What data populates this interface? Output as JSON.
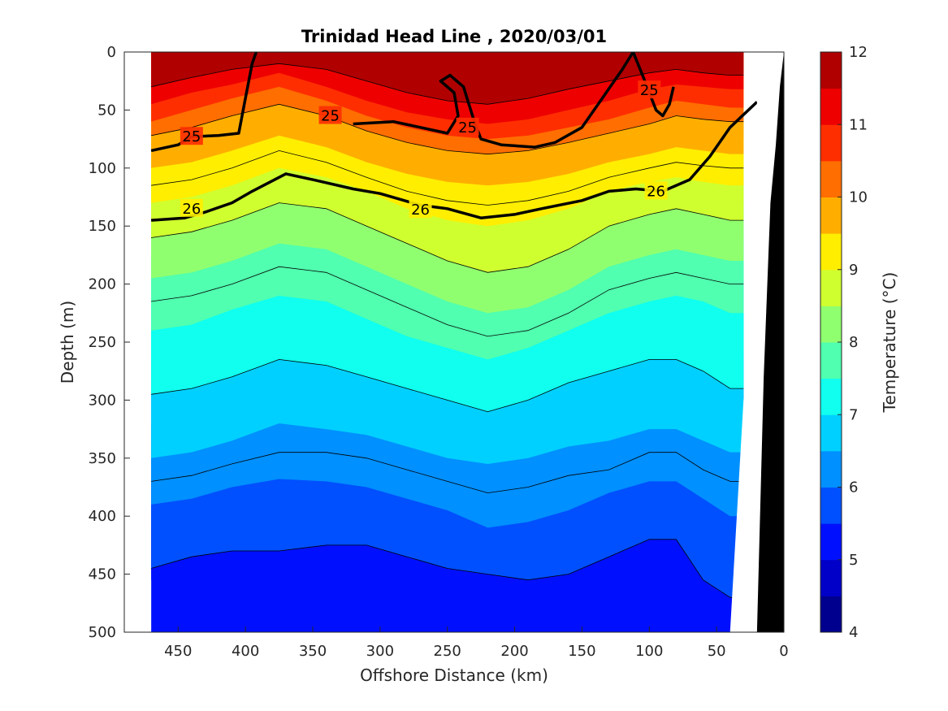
{
  "chart_data": {
    "type": "contour",
    "title": "Trinidad Head Line , 2020/03/01",
    "xlabel": "Offshore Distance (km)",
    "ylabel": "Depth (m)",
    "colorbar_label": "Temperature (°C)",
    "xlim": [
      490,
      0
    ],
    "ylim": [
      500,
      0
    ],
    "x_reversed": true,
    "y_reversed": true,
    "xticks": [
      450,
      400,
      350,
      300,
      250,
      200,
      150,
      100,
      50,
      0
    ],
    "yticks": [
      0,
      50,
      100,
      150,
      200,
      250,
      300,
      350,
      400,
      450,
      500
    ],
    "colorbar_ticks": [
      4,
      5,
      6,
      7,
      8,
      9,
      10,
      11,
      12
    ],
    "colorbar_range": [
      4,
      12
    ],
    "colormap": [
      "#00008f",
      "#0000c8",
      "#0010ff",
      "#0050ff",
      "#0090ff",
      "#00d0ff",
      "#10ffef",
      "#50ffaf",
      "#90ff6f",
      "#d0ff2f",
      "#ffee00",
      "#ffae00",
      "#ff6e00",
      "#ff2e00",
      "#ee0000",
      "#b00000"
    ],
    "temperature_bands": [
      {
        "temp": 5.25,
        "depth_top": [
          455,
          450,
          445,
          440,
          430,
          430,
          445,
          460,
          470,
          470,
          465,
          450,
          430,
          430,
          470,
          480,
          480
        ]
      },
      {
        "temp": 5.5,
        "depth_top": [
          445,
          435,
          430,
          430,
          425,
          425,
          435,
          445,
          450,
          455,
          450,
          435,
          420,
          420,
          455,
          470,
          470
        ]
      },
      {
        "temp": 5.75,
        "depth_top": [
          410,
          405,
          395,
          390,
          390,
          395,
          410,
          420,
          430,
          430,
          420,
          405,
          395,
          395,
          420,
          445,
          445
        ]
      },
      {
        "temp": 6.0,
        "depth_top": [
          390,
          385,
          375,
          368,
          370,
          375,
          385,
          395,
          410,
          405,
          395,
          380,
          370,
          370,
          385,
          400,
          400
        ]
      },
      {
        "temp": 6.25,
        "depth_top": [
          370,
          365,
          355,
          345,
          345,
          350,
          360,
          370,
          380,
          375,
          365,
          360,
          345,
          345,
          360,
          370,
          370
        ]
      },
      {
        "temp": 6.5,
        "depth_top": [
          350,
          345,
          335,
          320,
          325,
          330,
          340,
          350,
          355,
          350,
          340,
          335,
          325,
          325,
          335,
          345,
          345
        ]
      },
      {
        "temp": 6.75,
        "depth_top": [
          320,
          315,
          305,
          290,
          295,
          305,
          315,
          325,
          330,
          320,
          310,
          305,
          295,
          295,
          305,
          315,
          315
        ]
      },
      {
        "temp": 7.0,
        "depth_top": [
          295,
          290,
          280,
          265,
          270,
          280,
          290,
          300,
          310,
          300,
          285,
          275,
          265,
          265,
          275,
          290,
          290
        ]
      },
      {
        "temp": 7.25,
        "depth_top": [
          265,
          260,
          250,
          235,
          240,
          255,
          265,
          280,
          290,
          280,
          265,
          250,
          240,
          240,
          250,
          260,
          260
        ]
      },
      {
        "temp": 7.5,
        "depth_top": [
          240,
          235,
          222,
          210,
          215,
          230,
          245,
          255,
          265,
          255,
          240,
          225,
          215,
          210,
          215,
          225,
          225
        ]
      },
      {
        "temp": 7.75,
        "depth_top": [
          215,
          210,
          200,
          185,
          190,
          205,
          220,
          235,
          245,
          240,
          225,
          205,
          195,
          190,
          195,
          200,
          200
        ]
      },
      {
        "temp": 8.0,
        "depth_top": [
          195,
          190,
          180,
          165,
          170,
          185,
          200,
          215,
          225,
          220,
          205,
          185,
          175,
          170,
          175,
          180,
          180
        ]
      },
      {
        "temp": 8.25,
        "depth_top": [
          175,
          170,
          160,
          145,
          150,
          165,
          180,
          195,
          205,
          200,
          185,
          165,
          155,
          150,
          155,
          160,
          160
        ]
      },
      {
        "temp": 8.5,
        "depth_top": [
          160,
          155,
          145,
          130,
          135,
          150,
          165,
          180,
          190,
          185,
          170,
          150,
          140,
          135,
          140,
          145,
          145
        ]
      },
      {
        "temp": 8.75,
        "depth_top": [
          145,
          140,
          130,
          115,
          120,
          135,
          150,
          160,
          170,
          165,
          150,
          135,
          125,
          120,
          125,
          130,
          130
        ]
      },
      {
        "temp": 9.0,
        "depth_top": [
          130,
          125,
          115,
          100,
          108,
          120,
          135,
          145,
          150,
          145,
          135,
          120,
          112,
          108,
          112,
          115,
          115
        ]
      },
      {
        "temp": 9.25,
        "depth_top": [
          115,
          110,
          100,
          85,
          95,
          108,
          120,
          128,
          132,
          128,
          120,
          108,
          100,
          95,
          98,
          100,
          100
        ]
      },
      {
        "temp": 9.5,
        "depth_top": [
          100,
          95,
          85,
          72,
          82,
          95,
          105,
          112,
          115,
          112,
          105,
          95,
          88,
          82,
          85,
          88,
          88
        ]
      },
      {
        "temp": 9.75,
        "depth_top": [
          85,
          80,
          70,
          58,
          70,
          82,
          90,
          98,
          100,
          98,
          90,
          82,
          75,
          70,
          72,
          75,
          75
        ]
      },
      {
        "temp": 10.25,
        "depth_top": [
          72,
          65,
          55,
          45,
          55,
          68,
          78,
          85,
          88,
          85,
          78,
          70,
          62,
          55,
          58,
          60,
          60
        ]
      },
      {
        "temp": 10.75,
        "depth_top": [
          60,
          50,
          40,
          30,
          42,
          55,
          65,
          72,
          75,
          72,
          65,
          58,
          48,
          42,
          45,
          48,
          48
        ]
      },
      {
        "temp": 11.25,
        "depth_top": [
          45,
          35,
          28,
          18,
          30,
          42,
          52,
          58,
          62,
          58,
          50,
          42,
          32,
          28,
          30,
          32,
          32
        ]
      },
      {
        "temp": 11.75,
        "depth_top": [
          30,
          22,
          15,
          10,
          15,
          25,
          35,
          42,
          45,
          40,
          32,
          25,
          18,
          15,
          18,
          20,
          20
        ]
      }
    ],
    "band_x": [
      470,
      440,
      410,
      375,
      340,
      310,
      280,
      250,
      220,
      190,
      160,
      130,
      100,
      80,
      60,
      40,
      30
    ],
    "contours": [
      {
        "label": "25",
        "bold": true,
        "x": [
          470,
          450,
          440,
          420,
          405,
          400,
          395,
          392
        ],
        "y": [
          85,
          80,
          73,
          72,
          70,
          40,
          10,
          0
        ]
      },
      {
        "label": "25",
        "bold": true,
        "x": [
          320,
          290,
          270,
          250,
          242,
          245,
          255,
          248,
          238,
          230,
          225,
          210,
          185,
          170,
          150,
          135,
          120,
          112
        ],
        "y": [
          62,
          60,
          65,
          70,
          55,
          35,
          25,
          20,
          30,
          60,
          75,
          80,
          82,
          78,
          65,
          40,
          15,
          0
        ]
      },
      {
        "label": "25",
        "bold": true,
        "x": [
          112,
          105,
          100,
          95,
          90,
          85,
          82
        ],
        "y": [
          0,
          20,
          35,
          50,
          55,
          45,
          30
        ]
      },
      {
        "label": "26",
        "bold": true,
        "x": [
          470,
          445,
          430,
          410,
          395,
          370,
          350,
          320,
          300,
          270,
          250,
          225,
          200,
          180,
          150,
          130,
          110,
          90,
          70,
          55,
          40,
          20
        ],
        "y": [
          145,
          143,
          138,
          130,
          120,
          105,
          110,
          118,
          122,
          132,
          135,
          143,
          140,
          135,
          128,
          120,
          118,
          120,
          110,
          90,
          65,
          43
        ]
      }
    ],
    "contour_labels": [
      {
        "text": "25",
        "x": 440,
        "y": 73
      },
      {
        "text": "25",
        "x": 337,
        "y": 55
      },
      {
        "text": "25",
        "x": 235,
        "y": 65
      },
      {
        "text": "25",
        "x": 100,
        "y": 33
      },
      {
        "text": "26",
        "x": 440,
        "y": 135
      },
      {
        "text": "26",
        "x": 270,
        "y": 136
      },
      {
        "text": "26",
        "x": 95,
        "y": 120
      }
    ],
    "bathymetry_x": [
      20,
      15,
      10,
      6,
      3,
      0
    ],
    "bathymetry_y": [
      500,
      280,
      130,
      80,
      30,
      0
    ],
    "coastal_white_x": [
      40,
      30,
      20,
      20
    ],
    "coastal_white_y": [
      500,
      300,
      180,
      0
    ]
  }
}
